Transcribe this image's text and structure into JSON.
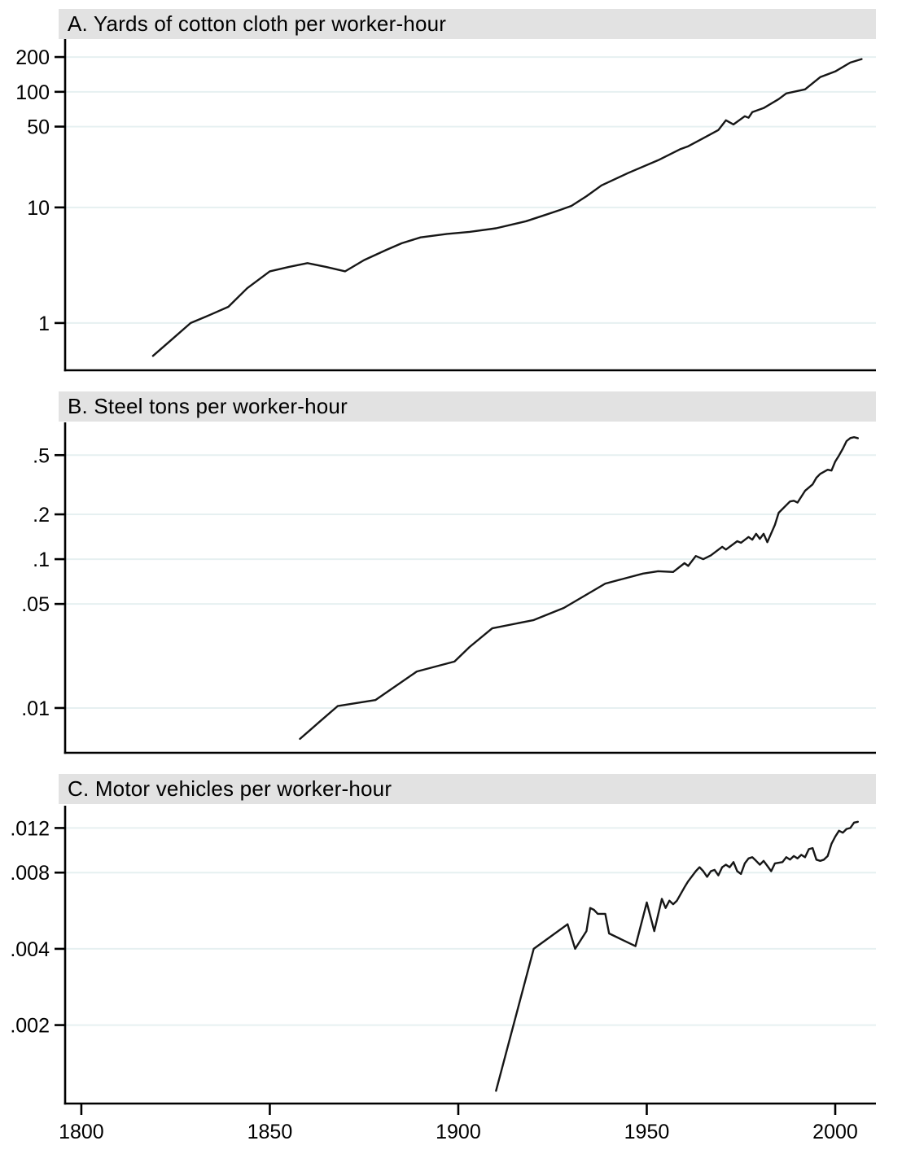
{
  "figure": {
    "background": "#ffffff",
    "panel_header_bg": "#e2e2e2",
    "text_color": "#000000",
    "axis_color": "#000000",
    "grid_color": "#e6f0f1",
    "line_color": "#161616"
  },
  "chart_data": {
    "type": "line",
    "layout": "three vertically stacked panels, shared x axis, log y scales, no legend, horizontal gridlines on",
    "x_axis": {
      "domain": [
        1795.7,
        2010.8
      ],
      "ticks": [
        {
          "label": "1800",
          "value": 1800
        },
        {
          "label": "1850",
          "value": 1850
        },
        {
          "label": "1900",
          "value": 1900
        },
        {
          "label": "1950",
          "value": 1950
        },
        {
          "label": "2000",
          "value": 2000
        }
      ]
    },
    "panels": [
      {
        "id": "a",
        "title": "A. Yards of cotton cloth per worker-hour",
        "y_scale": "log",
        "y_domain": [
          0.39,
          286
        ],
        "y_ticks": [
          {
            "label": "200",
            "value": 200
          },
          {
            "label": "100",
            "value": 100
          },
          {
            "label": "50",
            "value": 50
          },
          {
            "label": "10",
            "value": 10
          },
          {
            "label": "1",
            "value": 1
          }
        ],
        "series": [
          [
            1819,
            0.52
          ],
          [
            1824,
            0.72
          ],
          [
            1829,
            1.0
          ],
          [
            1834,
            1.17
          ],
          [
            1839,
            1.38
          ],
          [
            1844,
            2.0
          ],
          [
            1850,
            2.8
          ],
          [
            1855,
            3.05
          ],
          [
            1860,
            3.3
          ],
          [
            1865,
            3.05
          ],
          [
            1870,
            2.8
          ],
          [
            1875,
            3.5
          ],
          [
            1881,
            4.3
          ],
          [
            1885,
            4.9
          ],
          [
            1890,
            5.5
          ],
          [
            1897,
            5.9
          ],
          [
            1903,
            6.15
          ],
          [
            1910,
            6.6
          ],
          [
            1918,
            7.6
          ],
          [
            1923,
            8.6
          ],
          [
            1927,
            9.5
          ],
          [
            1930,
            10.3
          ],
          [
            1934,
            12.5
          ],
          [
            1938,
            15.5
          ],
          [
            1945,
            19.8
          ],
          [
            1953,
            25.6
          ],
          [
            1959,
            32
          ],
          [
            1961,
            33.8
          ],
          [
            1965,
            39.7
          ],
          [
            1969,
            46.7
          ],
          [
            1971,
            56.7
          ],
          [
            1973,
            52.2
          ],
          [
            1976,
            61.5
          ],
          [
            1977,
            59.6
          ],
          [
            1978,
            66.7
          ],
          [
            1981,
            72.3
          ],
          [
            1985,
            86.4
          ],
          [
            1987,
            96.8
          ],
          [
            1992,
            105
          ],
          [
            1996,
            134
          ],
          [
            2000,
            150
          ],
          [
            2004,
            179
          ],
          [
            2007,
            192
          ]
        ]
      },
      {
        "id": "b",
        "title": "B. Steel tons per worker-hour",
        "y_scale": "log",
        "y_domain": [
          0.005,
          0.83
        ],
        "y_ticks": [
          {
            "label": ".5",
            "value": 0.5
          },
          {
            "label": ".2",
            "value": 0.2
          },
          {
            "label": ".1",
            "value": 0.1
          },
          {
            "label": ".05",
            "value": 0.05
          },
          {
            "label": ".01",
            "value": 0.01
          }
        ],
        "series": [
          [
            1858,
            0.0062
          ],
          [
            1863,
            0.008
          ],
          [
            1868,
            0.0103
          ],
          [
            1878,
            0.0113
          ],
          [
            1889,
            0.0176
          ],
          [
            1899,
            0.0205
          ],
          [
            1903,
            0.0257
          ],
          [
            1909,
            0.0343
          ],
          [
            1920,
            0.039
          ],
          [
            1928,
            0.047
          ],
          [
            1939,
            0.0685
          ],
          [
            1949,
            0.08
          ],
          [
            1953,
            0.083
          ],
          [
            1957,
            0.082
          ],
          [
            1960,
            0.094
          ],
          [
            1961,
            0.09
          ],
          [
            1963,
            0.105
          ],
          [
            1965,
            0.1
          ],
          [
            1967,
            0.106
          ],
          [
            1970,
            0.121
          ],
          [
            1971,
            0.116
          ],
          [
            1974,
            0.132
          ],
          [
            1975,
            0.129
          ],
          [
            1977,
            0.141
          ],
          [
            1978,
            0.135
          ],
          [
            1979,
            0.148
          ],
          [
            1980,
            0.137
          ],
          [
            1981,
            0.148
          ],
          [
            1982,
            0.13
          ],
          [
            1984,
            0.17
          ],
          [
            1985,
            0.205
          ],
          [
            1988,
            0.244
          ],
          [
            1989,
            0.247
          ],
          [
            1990,
            0.24
          ],
          [
            1992,
            0.288
          ],
          [
            1994,
            0.318
          ],
          [
            1995,
            0.352
          ],
          [
            1996,
            0.374
          ],
          [
            1998,
            0.399
          ],
          [
            1999,
            0.394
          ],
          [
            2000,
            0.453
          ],
          [
            2001,
            0.497
          ],
          [
            2002,
            0.552
          ],
          [
            2003,
            0.621
          ],
          [
            2004,
            0.651
          ],
          [
            2005,
            0.66
          ],
          [
            2006,
            0.65
          ]
        ]
      },
      {
        "id": "c",
        "title": "C. Motor vehicles per worker-hour",
        "y_scale": "log",
        "y_domain": [
          0.00098,
          0.0147
        ],
        "y_ticks": [
          {
            "label": ".012",
            "value": 0.012
          },
          {
            "label": ".008",
            "value": 0.008
          },
          {
            "label": ".004",
            "value": 0.004
          },
          {
            "label": ".002",
            "value": 0.002
          }
        ],
        "series": [
          [
            1910,
            0.0011
          ],
          [
            1920,
            0.004
          ],
          [
            1929,
            0.005
          ],
          [
            1931,
            0.004
          ],
          [
            1934,
            0.0047
          ],
          [
            1935,
            0.0058
          ],
          [
            1936,
            0.0057
          ],
          [
            1937,
            0.0055
          ],
          [
            1939,
            0.0055
          ],
          [
            1940,
            0.0046
          ],
          [
            1947,
            0.0041
          ],
          [
            1950,
            0.0061
          ],
          [
            1952,
            0.0047
          ],
          [
            1954,
            0.0063
          ],
          [
            1955,
            0.0058
          ],
          [
            1956,
            0.0062
          ],
          [
            1957,
            0.006
          ],
          [
            1958,
            0.0062
          ],
          [
            1960,
            0.007
          ],
          [
            1961,
            0.0074
          ],
          [
            1963,
            0.0081
          ],
          [
            1964,
            0.0084
          ],
          [
            1965,
            0.0081
          ],
          [
            1966,
            0.0077
          ],
          [
            1967,
            0.0081
          ],
          [
            1968,
            0.0082
          ],
          [
            1969,
            0.0078
          ],
          [
            1970,
            0.0084
          ],
          [
            1971,
            0.0086
          ],
          [
            1972,
            0.0084
          ],
          [
            1973,
            0.0088
          ],
          [
            1974,
            0.0081
          ],
          [
            1975,
            0.0079
          ],
          [
            1976,
            0.0087
          ],
          [
            1977,
            0.0091
          ],
          [
            1978,
            0.0092
          ],
          [
            1979,
            0.0089
          ],
          [
            1980,
            0.0086
          ],
          [
            1981,
            0.0089
          ],
          [
            1982,
            0.0085
          ],
          [
            1983,
            0.0081
          ],
          [
            1984,
            0.0087
          ],
          [
            1986,
            0.0088
          ],
          [
            1987,
            0.0092
          ],
          [
            1988,
            0.009
          ],
          [
            1989,
            0.0093
          ],
          [
            1990,
            0.0091
          ],
          [
            1991,
            0.0094
          ],
          [
            1992,
            0.0092
          ],
          [
            1993,
            0.0099
          ],
          [
            1994,
            0.01
          ],
          [
            1995,
            0.009
          ],
          [
            1996,
            0.0089
          ],
          [
            1997,
            0.009
          ],
          [
            1998,
            0.0093
          ],
          [
            1999,
            0.0104
          ],
          [
            2000,
            0.0111
          ],
          [
            2001,
            0.0117
          ],
          [
            2002,
            0.0115
          ],
          [
            2003,
            0.0119
          ],
          [
            2004,
            0.012
          ],
          [
            2005,
            0.0126
          ],
          [
            2006,
            0.0127
          ]
        ]
      }
    ]
  }
}
